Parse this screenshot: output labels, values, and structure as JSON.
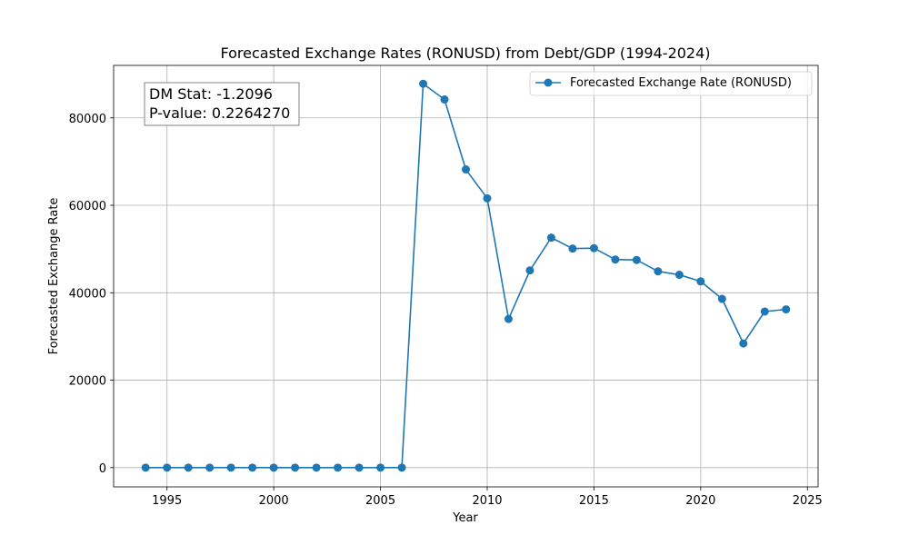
{
  "chart_data": {
    "type": "line",
    "title": "Forecasted Exchange Rates (RONUSD) from Debt/GDP (1994-2024)",
    "xlabel": "Year",
    "ylabel": "Forecasted Exchange Rate",
    "xlim": [
      1992.5,
      2025.5
    ],
    "ylim": [
      -4400,
      92000
    ],
    "xticks": [
      1995,
      2000,
      2005,
      2010,
      2015,
      2020,
      2025
    ],
    "yticks": [
      0,
      20000,
      40000,
      60000,
      80000
    ],
    "grid": true,
    "legend_position": "top-right",
    "series": [
      {
        "name": "Forecasted Exchange Rate (RONUSD)",
        "color": "#1f77b4",
        "marker": "circle",
        "x": [
          1994,
          1995,
          1996,
          1997,
          1998,
          1999,
          2000,
          2001,
          2002,
          2003,
          2004,
          2005,
          2006,
          2007,
          2008,
          2009,
          2010,
          2011,
          2012,
          2013,
          2014,
          2015,
          2016,
          2017,
          2018,
          2019,
          2020,
          2021,
          2022,
          2023,
          2024
        ],
        "y": [
          0,
          0,
          0,
          0,
          0,
          0,
          0,
          0,
          0,
          0,
          0,
          0,
          0,
          87800,
          84200,
          68200,
          61600,
          34000,
          45100,
          52600,
          50100,
          50200,
          47600,
          47500,
          44900,
          44100,
          42600,
          38600,
          28400,
          35700,
          36200
        ]
      }
    ],
    "annotation": {
      "lines": [
        "DM Stat: -1.2096",
        "P-value: 0.2264270"
      ],
      "position": "top-left"
    }
  }
}
